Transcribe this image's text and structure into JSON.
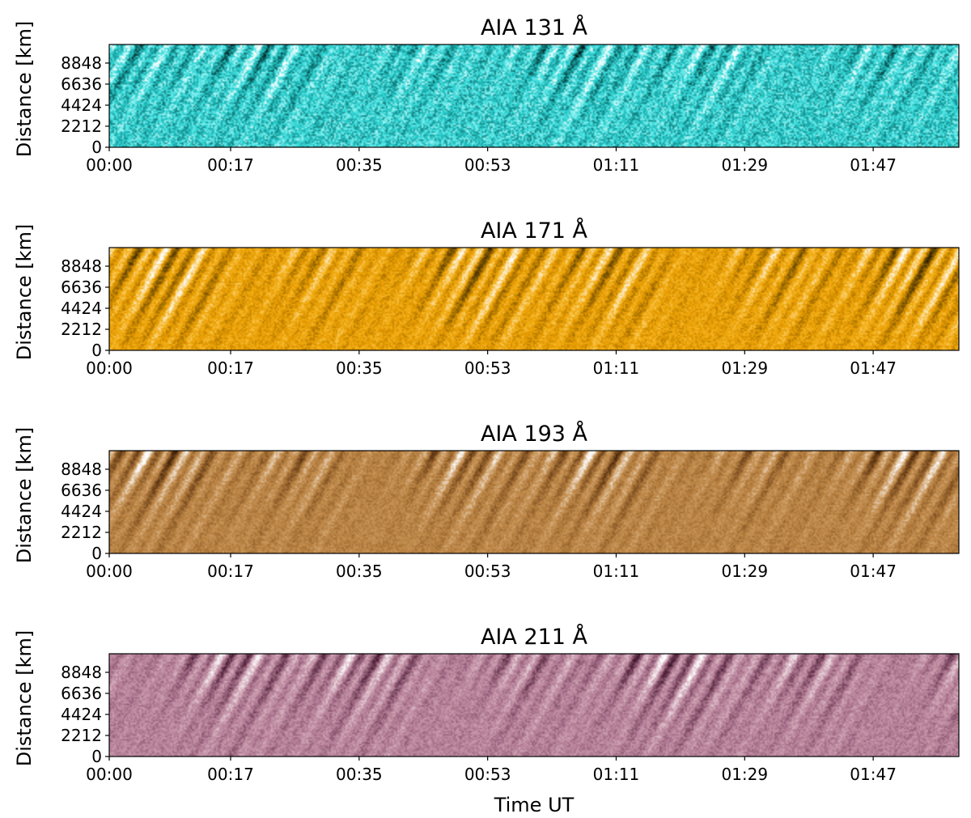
{
  "chart_data": [
    {
      "type": "heatmap",
      "title": "AIA 131 Å",
      "ylabel": "Distance [km]",
      "xlabel": "",
      "x_ticks": [
        "00:00",
        "00:17",
        "00:35",
        "00:53",
        "01:11",
        "01:29",
        "01:47"
      ],
      "y_ticks": [
        0,
        2212,
        4424,
        6636,
        8848
      ],
      "xlim": [
        "00:00",
        "01:59"
      ],
      "ylim": [
        0,
        10800
      ],
      "colormap": [
        "#000000",
        "#0b5e5e",
        "#27c8c8",
        "#4fe4e4",
        "#ffffff"
      ]
    },
    {
      "type": "heatmap",
      "title": "AIA 171 Å",
      "ylabel": "Distance [km]",
      "xlabel": "",
      "x_ticks": [
        "00:00",
        "00:17",
        "00:35",
        "00:53",
        "01:11",
        "01:29",
        "01:47"
      ],
      "y_ticks": [
        0,
        2212,
        4424,
        6636,
        8848
      ],
      "xlim": [
        "00:00",
        "01:59"
      ],
      "ylim": [
        0,
        10800
      ],
      "colormap": [
        "#000000",
        "#6b4a00",
        "#e59a00",
        "#f5b21c",
        "#ffffff"
      ]
    },
    {
      "type": "heatmap",
      "title": "AIA 193 Å",
      "ylabel": "Distance [km]",
      "xlabel": "",
      "x_ticks": [
        "00:00",
        "00:17",
        "00:35",
        "00:53",
        "01:11",
        "01:29",
        "01:47"
      ],
      "y_ticks": [
        0,
        2212,
        4424,
        6636,
        8848
      ],
      "xlim": [
        "00:00",
        "01:59"
      ],
      "ylim": [
        0,
        10800
      ],
      "colormap": [
        "#000000",
        "#5a3210",
        "#b47d3e",
        "#c9965a",
        "#ffffff"
      ]
    },
    {
      "type": "heatmap",
      "title": "AIA 211 Å",
      "ylabel": "Distance [km]",
      "xlabel": "Time UT",
      "x_ticks": [
        "00:00",
        "00:17",
        "00:35",
        "00:53",
        "01:11",
        "01:29",
        "01:47"
      ],
      "y_ticks": [
        0,
        2212,
        4424,
        6636,
        8848
      ],
      "xlim": [
        "00:00",
        "01:59"
      ],
      "ylim": [
        0,
        10800
      ],
      "colormap": [
        "#000000",
        "#4a1c34",
        "#b07a93",
        "#c898ab",
        "#ffffff"
      ]
    }
  ]
}
